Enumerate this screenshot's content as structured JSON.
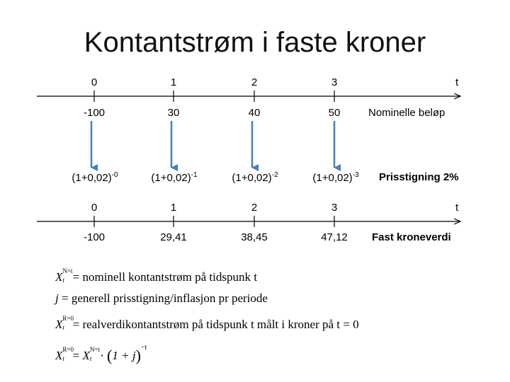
{
  "title": "Kontantstrøm i faste kroner",
  "timeline1": {
    "periods": [
      "0",
      "1",
      "2",
      "3"
    ],
    "axis_label": "t",
    "values": [
      "-100",
      "30",
      "40",
      "50"
    ],
    "values_label": "Nominelle beløp"
  },
  "discount": {
    "base": "(1+0,02)",
    "exponents": [
      "-0",
      "-1",
      "-2",
      "-3"
    ],
    "label": "Prisstigning 2%"
  },
  "timeline2": {
    "periods": [
      "0",
      "1",
      "2",
      "3"
    ],
    "axis_label": "t",
    "values": [
      "-100",
      "29,41",
      "38,45",
      "47,12"
    ],
    "values_label": "Fast kroneverdi"
  },
  "legend": {
    "line1_text": "= nominell kontantstrøm på tidspunk t",
    "line2_symbol": "j",
    "line2_text": "= generell prisstigning/inflasjon pr periode",
    "line3_text": "= realverdikontantstrøm på tidspunk t målt i kroner på t = 0",
    "line4_eq": "=",
    "line4_dot": "·",
    "line4_inner": "1 + j",
    "line4_exp": "−t",
    "symbol_X": "X",
    "symbol_t": "t",
    "sup_N": "N=t",
    "sup_R": "R=0"
  },
  "colors": {
    "arrow": "#4a7ebb",
    "axis": "#000000"
  }
}
